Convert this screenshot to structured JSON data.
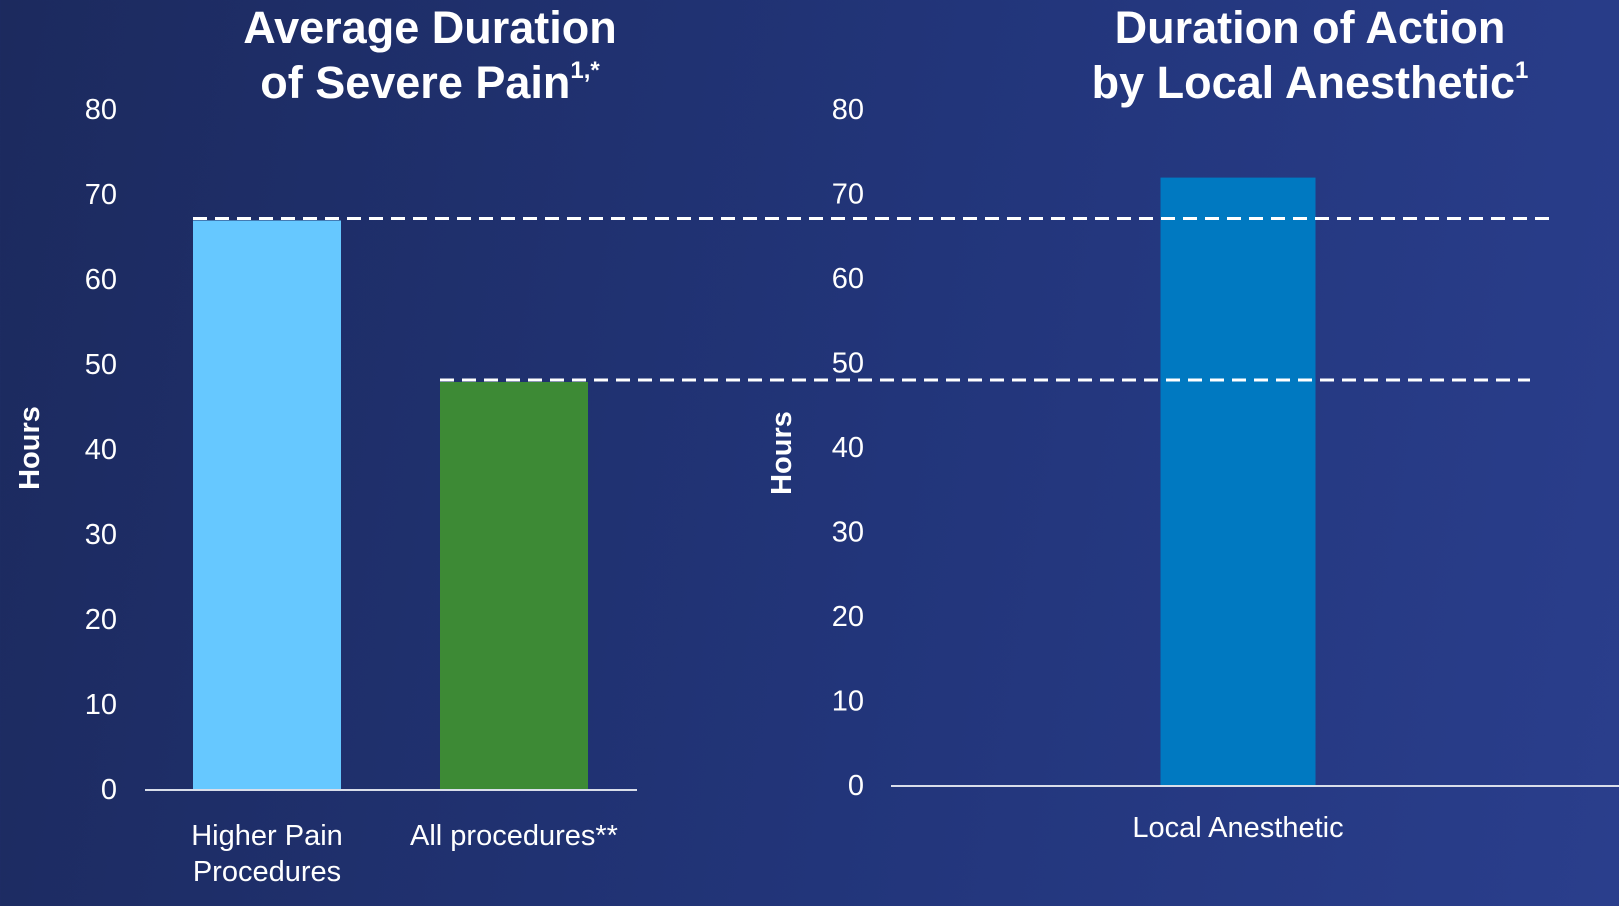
{
  "chart_data": [
    {
      "type": "bar",
      "title": "Average Duration of Severe Pain",
      "title_line1": "Average Duration",
      "title_line2": "of Severe Pain",
      "title_superscript": "1,*",
      "ylabel": "Hours",
      "ylim": [
        0,
        80
      ],
      "yticks": [
        0,
        10,
        20,
        30,
        40,
        50,
        60,
        70,
        80
      ],
      "categories": [
        "Higher Pain Procedures",
        "All procedures**"
      ],
      "category_lines": [
        [
          "Higher Pain",
          "Procedures"
        ],
        [
          "All procedures**"
        ]
      ],
      "values": [
        67,
        48
      ],
      "colors": [
        "#66c8ff",
        "#3d8a35"
      ],
      "reference_lines": [
        67,
        48
      ],
      "grid": false
    },
    {
      "type": "bar",
      "title": "Duration of Action by Local Anesthetic",
      "title_line1": "Duration of Action",
      "title_line2": "by Local Anesthetic",
      "title_superscript": "1",
      "ylabel": "Hours",
      "ylim": [
        0,
        80
      ],
      "yticks": [
        0,
        10,
        20,
        30,
        40,
        50,
        60,
        70,
        80
      ],
      "categories": [
        "Local Anesthetic"
      ],
      "category_lines": [
        [
          "Local Anesthetic"
        ]
      ],
      "values": [
        72
      ],
      "colors": [
        "#0079c1"
      ],
      "reference_lines": [
        67,
        48
      ],
      "grid": false
    }
  ],
  "colors": {
    "background_start": "#1c2a5e",
    "background_end": "#2a3e8c",
    "axis_line": "#d9deea",
    "reference_line": "#ffffff",
    "text": "#ffffff"
  }
}
